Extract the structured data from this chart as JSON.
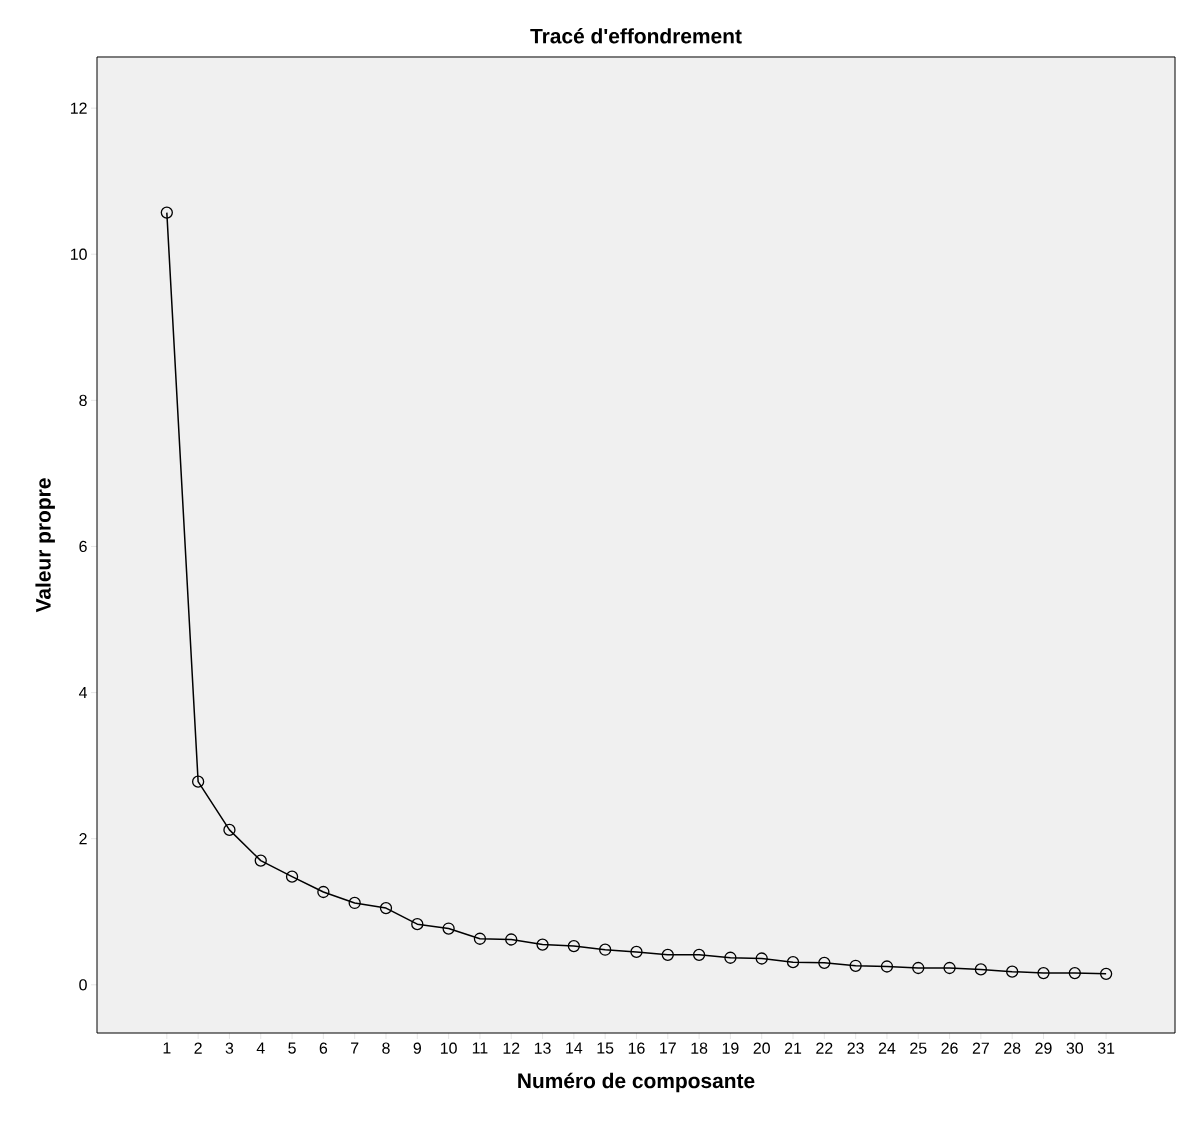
{
  "chart_data": {
    "type": "line",
    "title": "Tracé d'effondrement",
    "xlabel": "Numéro de composante",
    "ylabel": "Valeur propre",
    "categories": [
      "1",
      "2",
      "3",
      "4",
      "5",
      "6",
      "7",
      "8",
      "9",
      "10",
      "11",
      "12",
      "13",
      "14",
      "15",
      "16",
      "17",
      "18",
      "19",
      "20",
      "21",
      "22",
      "23",
      "24",
      "25",
      "26",
      "27",
      "28",
      "29",
      "30",
      "31"
    ],
    "values": [
      10.57,
      2.78,
      2.12,
      1.7,
      1.48,
      1.27,
      1.12,
      1.05,
      0.83,
      0.77,
      0.63,
      0.62,
      0.55,
      0.53,
      0.48,
      0.45,
      0.41,
      0.41,
      0.37,
      0.36,
      0.31,
      0.3,
      0.26,
      0.25,
      0.23,
      0.23,
      0.21,
      0.18,
      0.16,
      0.16,
      0.15
    ],
    "color": "#000000",
    "marker": "circle",
    "line_style": "solid",
    "ylim": [
      -0.66,
      12.7
    ],
    "yticks": [
      0,
      2,
      4,
      6,
      8,
      10,
      12
    ]
  }
}
